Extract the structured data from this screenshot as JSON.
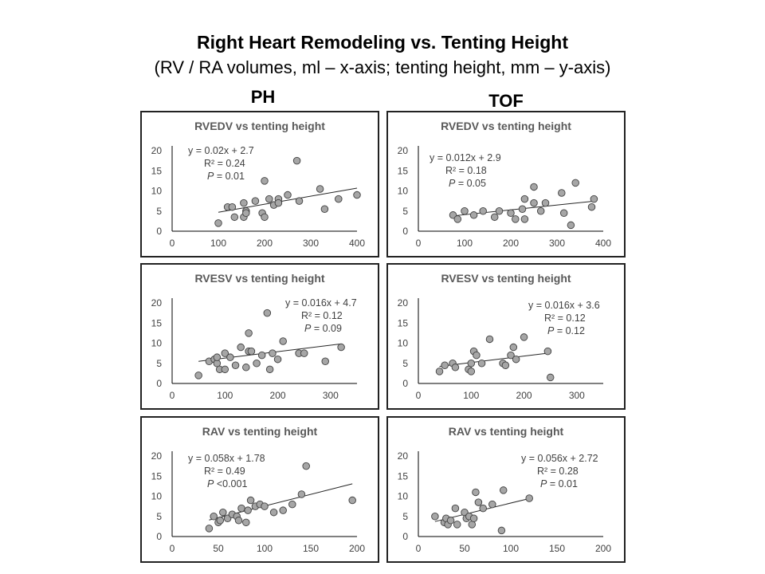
{
  "title": "Right Heart Remodeling vs. Tenting Height",
  "subtitle": "(RV / RA volumes, ml – x-axis; tenting height, mm – y-axis)",
  "groups": {
    "ph": "PH",
    "tof": "TOF"
  },
  "colors": {
    "marker_fill": "#a6a6a6",
    "marker_edge": "#404040",
    "axis": "#000000",
    "trend": "#262626"
  },
  "chart_data": [
    {
      "group": "PH",
      "type": "scatter",
      "title": "RVEDV vs tenting height",
      "xlim": [
        0,
        400
      ],
      "ylim": [
        0,
        20
      ],
      "xticks": [
        "0",
        "100",
        "200",
        "300",
        "400"
      ],
      "yticks": [
        "0",
        "5",
        "10",
        "15",
        "20"
      ],
      "points": [
        [
          100,
          2
        ],
        [
          120,
          6
        ],
        [
          130,
          6
        ],
        [
          135,
          3.5
        ],
        [
          155,
          3.5
        ],
        [
          155,
          7
        ],
        [
          160,
          5
        ],
        [
          160,
          4.5
        ],
        [
          180,
          7.5
        ],
        [
          195,
          4.5
        ],
        [
          200,
          12.5
        ],
        [
          200,
          3.5
        ],
        [
          210,
          8
        ],
        [
          220,
          6.5
        ],
        [
          230,
          8
        ],
        [
          230,
          7
        ],
        [
          250,
          9
        ],
        [
          270,
          17.5
        ],
        [
          275,
          7.5
        ],
        [
          320,
          10.5
        ],
        [
          330,
          5.5
        ],
        [
          360,
          8
        ],
        [
          400,
          9
        ]
      ],
      "trendline": {
        "slope": 0.02,
        "intercept": 2.7,
        "x_range": [
          100,
          400
        ]
      },
      "annotation": {
        "equation": "y = 0.02x + 2.7",
        "r2": "R² = 0.24",
        "p_label": "P",
        "p_value": "= 0.01"
      }
    },
    {
      "group": "TOF",
      "type": "scatter",
      "title": "RVEDV vs tenting height",
      "xlim": [
        0,
        400
      ],
      "ylim": [
        0,
        20
      ],
      "xticks": [
        "0",
        "100",
        "200",
        "300",
        "400"
      ],
      "yticks": [
        "0",
        "5",
        "10",
        "15",
        "20"
      ],
      "points": [
        [
          75,
          4
        ],
        [
          85,
          3
        ],
        [
          100,
          5
        ],
        [
          120,
          4
        ],
        [
          140,
          5
        ],
        [
          165,
          3.5
        ],
        [
          175,
          5
        ],
        [
          200,
          4.5
        ],
        [
          210,
          3
        ],
        [
          225,
          5.5
        ],
        [
          230,
          3
        ],
        [
          230,
          8
        ],
        [
          250,
          7
        ],
        [
          250,
          11
        ],
        [
          265,
          5
        ],
        [
          275,
          7
        ],
        [
          310,
          9.5
        ],
        [
          315,
          4.5
        ],
        [
          330,
          1.5
        ],
        [
          340,
          12
        ],
        [
          375,
          6
        ],
        [
          380,
          8
        ]
      ],
      "trendline": {
        "slope": 0.012,
        "intercept": 2.9,
        "x_range": [
          75,
          380
        ]
      },
      "annotation": {
        "equation": "y = 0.012x + 2.9",
        "r2": "R² = 0.18",
        "p_label": "P",
        "p_value": "= 0.05"
      }
    },
    {
      "group": "PH",
      "type": "scatter",
      "title": "RVESV vs tenting height",
      "xlim": [
        0,
        350
      ],
      "ylim": [
        0,
        20
      ],
      "xticks": [
        "0",
        "100",
        "200",
        "300"
      ],
      "yticks": [
        "0",
        "5",
        "10",
        "15",
        "20"
      ],
      "points": [
        [
          50,
          2
        ],
        [
          70,
          5.5
        ],
        [
          80,
          6
        ],
        [
          85,
          5
        ],
        [
          85,
          6.5
        ],
        [
          90,
          3.5
        ],
        [
          100,
          7.5
        ],
        [
          100,
          3.5
        ],
        [
          110,
          6.5
        ],
        [
          120,
          4.5
        ],
        [
          130,
          9
        ],
        [
          140,
          4
        ],
        [
          145,
          12.5
        ],
        [
          145,
          8
        ],
        [
          150,
          8
        ],
        [
          160,
          5
        ],
        [
          170,
          7
        ],
        [
          180,
          17.5
        ],
        [
          185,
          3.5
        ],
        [
          190,
          7.5
        ],
        [
          200,
          6
        ],
        [
          210,
          10.5
        ],
        [
          240,
          7.5
        ],
        [
          250,
          7.5
        ],
        [
          290,
          5.5
        ],
        [
          320,
          9
        ]
      ],
      "trendline": {
        "slope": 0.016,
        "intercept": 4.7,
        "x_range": [
          50,
          320
        ]
      },
      "annotation": {
        "equation": "y = 0.016x + 4.7",
        "r2": "R² = 0.12",
        "p_label": "P",
        "p_value": "= 0.09"
      }
    },
    {
      "group": "TOF",
      "type": "scatter",
      "title": "RVESV vs tenting height",
      "xlim": [
        0,
        350
      ],
      "ylim": [
        0,
        20
      ],
      "xticks": [
        "0",
        "100",
        "200",
        "300"
      ],
      "yticks": [
        "0",
        "5",
        "10",
        "15",
        "20"
      ],
      "points": [
        [
          40,
          3
        ],
        [
          50,
          4.5
        ],
        [
          65,
          5
        ],
        [
          70,
          4
        ],
        [
          95,
          3.5
        ],
        [
          100,
          5
        ],
        [
          100,
          3
        ],
        [
          105,
          8
        ],
        [
          110,
          7
        ],
        [
          120,
          5
        ],
        [
          135,
          11
        ],
        [
          160,
          5
        ],
        [
          165,
          4.5
        ],
        [
          175,
          7
        ],
        [
          180,
          9
        ],
        [
          185,
          6
        ],
        [
          200,
          11.5
        ],
        [
          245,
          8
        ],
        [
          250,
          1.5
        ]
      ],
      "trendline": {
        "slope": 0.016,
        "intercept": 3.6,
        "x_range": [
          40,
          250
        ]
      },
      "annotation": {
        "equation": "y = 0.016x + 3.6",
        "r2": "R² = 0.12",
        "p_label": "P",
        "p_value": "= 0.12"
      }
    },
    {
      "group": "PH",
      "type": "scatter",
      "title": "RAV vs tenting height",
      "xlim": [
        0,
        200
      ],
      "ylim": [
        0,
        20
      ],
      "xticks": [
        "0",
        "50",
        "100",
        "150",
        "200"
      ],
      "yticks": [
        "0",
        "5",
        "10",
        "15",
        "20"
      ],
      "points": [
        [
          40,
          2
        ],
        [
          45,
          5
        ],
        [
          50,
          3.5
        ],
        [
          52,
          4
        ],
        [
          55,
          6
        ],
        [
          60,
          4.5
        ],
        [
          65,
          5.5
        ],
        [
          70,
          5
        ],
        [
          72,
          4
        ],
        [
          75,
          7
        ],
        [
          80,
          3.5
        ],
        [
          82,
          6.5
        ],
        [
          85,
          9
        ],
        [
          90,
          7.5
        ],
        [
          95,
          8
        ],
        [
          100,
          7.5
        ],
        [
          110,
          6
        ],
        [
          120,
          6.5
        ],
        [
          130,
          8
        ],
        [
          140,
          10.5
        ],
        [
          145,
          17.5
        ],
        [
          195,
          9
        ]
      ],
      "trendline": {
        "slope": 0.058,
        "intercept": 1.78,
        "x_range": [
          40,
          195
        ]
      },
      "annotation": {
        "equation": "y = 0.058x + 1.78",
        "r2": "R² = 0.49",
        "p_label": "P",
        "p_value": "<0.001"
      }
    },
    {
      "group": "TOF",
      "type": "scatter",
      "title": "RAV vs tenting height",
      "xlim": [
        0,
        200
      ],
      "ylim": [
        0,
        20
      ],
      "xticks": [
        "0",
        "50",
        "100",
        "150",
        "200"
      ],
      "yticks": [
        "0",
        "5",
        "10",
        "15",
        "20"
      ],
      "points": [
        [
          18,
          5
        ],
        [
          28,
          3.5
        ],
        [
          30,
          4.5
        ],
        [
          32,
          3
        ],
        [
          35,
          4
        ],
        [
          40,
          7
        ],
        [
          42,
          3
        ],
        [
          50,
          6
        ],
        [
          52,
          4.5
        ],
        [
          55,
          5
        ],
        [
          58,
          3
        ],
        [
          60,
          4.5
        ],
        [
          62,
          11
        ],
        [
          65,
          8.5
        ],
        [
          70,
          7
        ],
        [
          80,
          8
        ],
        [
          90,
          1.5
        ],
        [
          92,
          11.5
        ],
        [
          120,
          9.5
        ]
      ],
      "trendline": {
        "slope": 0.056,
        "intercept": 2.72,
        "x_range": [
          18,
          120
        ]
      },
      "annotation": {
        "equation": "y = 0.056x + 2.72",
        "r2": "R² = 0.28",
        "p_label": "P",
        "p_value": "= 0.01"
      }
    }
  ]
}
